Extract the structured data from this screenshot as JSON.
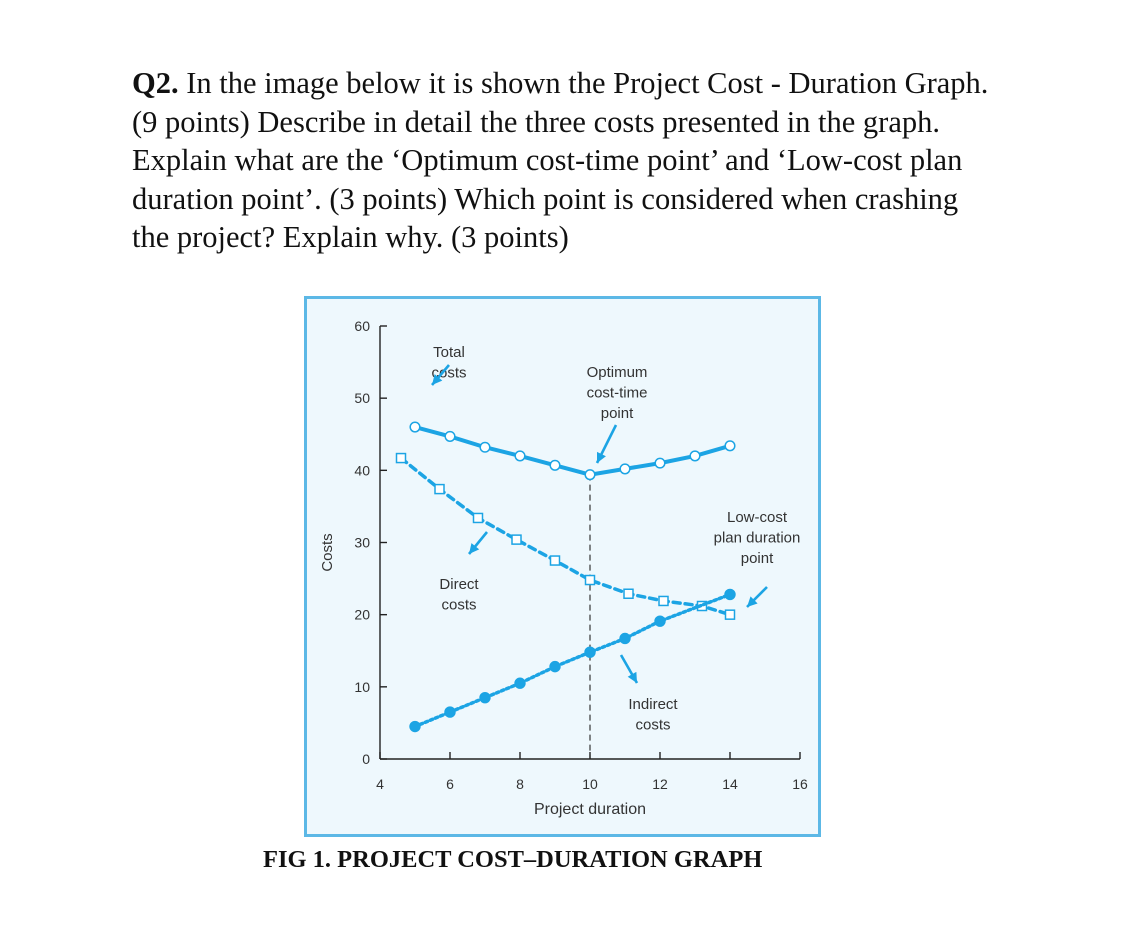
{
  "question": {
    "number": "Q2.",
    "text": " In the image below it is shown the Project Cost - Duration Graph. (9 points) Describe in detail the three costs presented in the graph. Explain what are the ‘Optimum cost-time point’ and ‘Low-cost plan duration point’. (3 points) Which point is considered when crashing the project? Explain why. (3 points)"
  },
  "caption": "FIG 1. PROJECT COST–DURATION GRAPH",
  "colors": {
    "line": "#1ca4e4",
    "frame": "#5cb8e6",
    "axis": "#222222",
    "text": "#333333"
  },
  "chart_data": {
    "type": "line",
    "title": "",
    "xlabel": "Project duration",
    "ylabel": "Costs",
    "xlim": [
      4,
      16
    ],
    "ylim": [
      0,
      60
    ],
    "xticks": [
      4,
      6,
      8,
      10,
      12,
      14,
      16
    ],
    "yticks": [
      0,
      10,
      20,
      30,
      40,
      50,
      60
    ],
    "series": [
      {
        "name": "Total costs",
        "style": "solid",
        "marker": "open-circle",
        "x": [
          5,
          6,
          7,
          8,
          9,
          10,
          11,
          12,
          13,
          14
        ],
        "y": [
          46,
          44.7,
          43.2,
          42,
          40.7,
          39.4,
          40.2,
          41,
          42,
          43.4
        ]
      },
      {
        "name": "Direct costs",
        "style": "dashed",
        "marker": "open-square",
        "x": [
          4.6,
          5.7,
          6.8,
          7.9,
          9,
          10,
          11.1,
          12.1,
          13.2,
          14
        ],
        "y": [
          41.7,
          37.4,
          33.4,
          30.4,
          27.5,
          24.8,
          22.9,
          21.9,
          21.2,
          20
        ]
      },
      {
        "name": "Indirect costs",
        "style": "dotted",
        "marker": "filled-circle",
        "x": [
          5,
          6,
          7,
          8,
          9,
          10,
          11,
          12,
          14
        ],
        "y": [
          4.5,
          6.5,
          8.5,
          10.5,
          12.8,
          14.8,
          16.7,
          19.1,
          22.8
        ]
      }
    ],
    "optimum_x": 10,
    "annotations": [
      {
        "text": [
          "Total",
          "costs"
        ]
      },
      {
        "text": [
          "Optimum",
          "cost-time",
          "point"
        ]
      },
      {
        "text": [
          "Low-cost",
          "plan duration",
          "point"
        ]
      },
      {
        "text": [
          "Direct",
          "costs"
        ]
      },
      {
        "text": [
          "Indirect",
          "costs"
        ]
      }
    ]
  }
}
